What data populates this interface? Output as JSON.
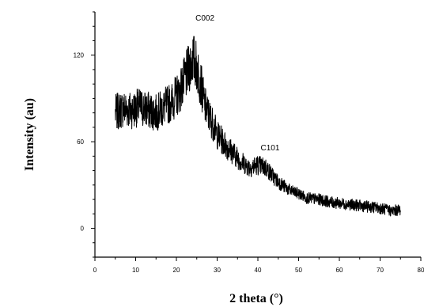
{
  "chart_data": {
    "type": "line",
    "title": "",
    "xlabel": "2 theta (°)",
    "ylabel": "Intensity (au)",
    "xlim": [
      0,
      80
    ],
    "ylim": [
      -20,
      150
    ],
    "grid": false,
    "legend": "none",
    "x_ticks": [
      0,
      10,
      20,
      30,
      40,
      50,
      60,
      70,
      80
    ],
    "y_ticks": [
      0,
      60,
      120
    ],
    "annotations": [
      {
        "text": "C002",
        "x": 27,
        "y": 144
      },
      {
        "text": "C101",
        "x": 43,
        "y": 54
      }
    ],
    "series": [
      {
        "color": "#000000",
        "x": [
          5,
          7,
          9,
          11,
          13,
          15,
          17,
          19,
          21,
          22,
          23,
          24,
          25,
          26,
          27,
          28,
          29,
          30,
          32,
          34,
          36,
          38,
          40,
          42,
          44,
          46,
          48,
          50,
          52,
          55,
          58,
          61,
          64,
          67,
          70,
          73,
          75
        ],
        "y": [
          80,
          83,
          82,
          84,
          82,
          80,
          84,
          88,
          96,
          103,
          110,
          118,
          112,
          100,
          85,
          78,
          72,
          65,
          58,
          52,
          46,
          42,
          44,
          42,
          35,
          30,
          26,
          24,
          21,
          20,
          18,
          17,
          16,
          15,
          14,
          12,
          13
        ]
      }
    ]
  }
}
